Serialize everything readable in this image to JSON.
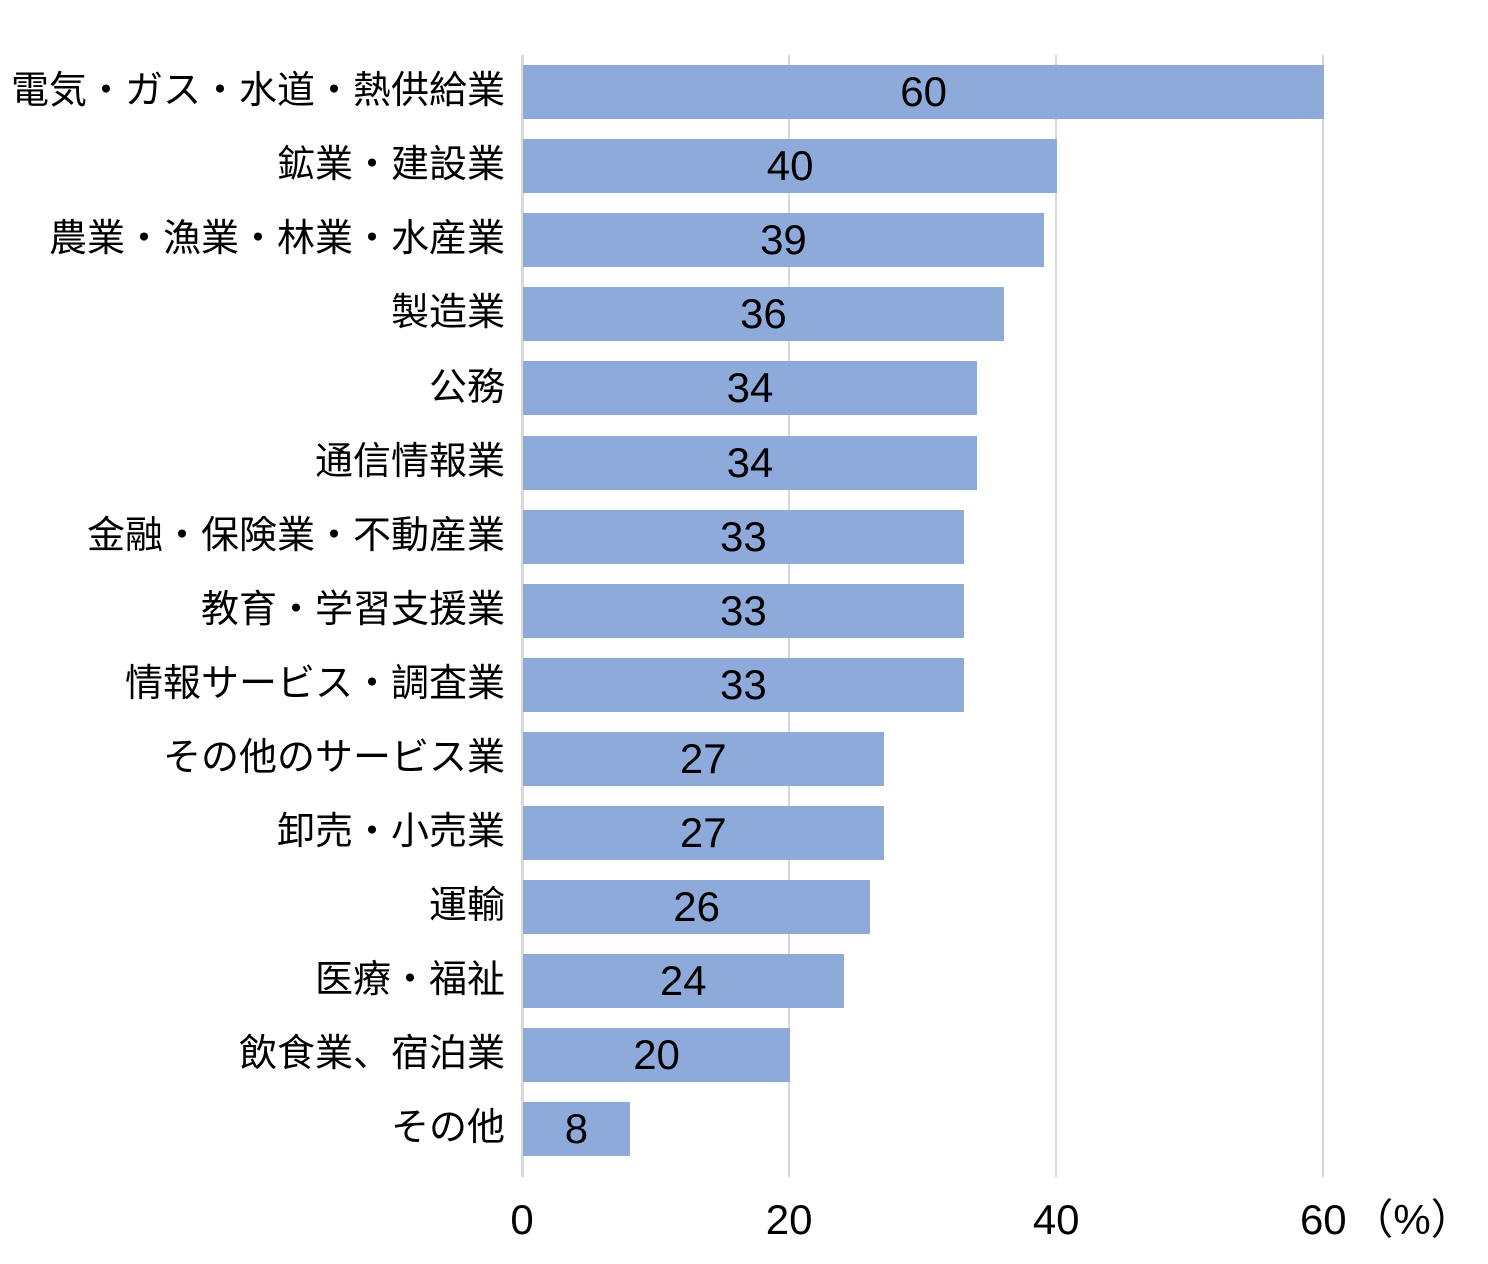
{
  "chart_data": {
    "type": "bar",
    "orientation": "horizontal",
    "title": "",
    "categories": [
      "電気・ガス・水道・熱供給業",
      "鉱業・建設業",
      "農業・漁業・林業・水産業",
      "製造業",
      "公務",
      "通信情報業",
      "金融・保険業・不動産業",
      "教育・学習支援業",
      "情報サービス・調査業",
      "その他のサービス業",
      "卸売・小売業",
      "運輸",
      "医療・福祉",
      "飲食業、宿泊業",
      "その他"
    ],
    "values": [
      60,
      40,
      39,
      36,
      34,
      34,
      33,
      33,
      33,
      27,
      27,
      26,
      24,
      20,
      8
    ],
    "x_ticks": [
      0,
      20,
      40,
      60
    ],
    "unit_label": "（%）",
    "xlim": [
      0,
      70
    ],
    "grid": true,
    "legend_position": "none",
    "value_label_position": "inside-center",
    "colors": {
      "bar": "#8EAADB",
      "gridline": "#D9D9D9",
      "text": "#000000",
      "background": "#FFFFFF"
    }
  }
}
